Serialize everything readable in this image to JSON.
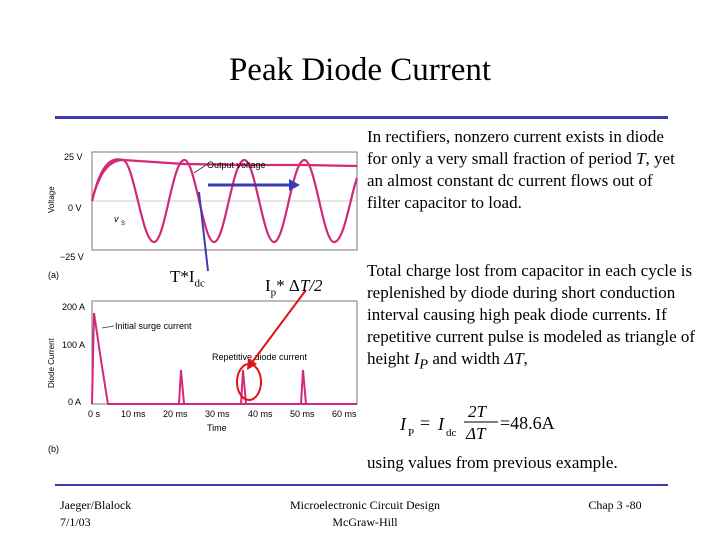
{
  "slide": {
    "title": "Peak Diode Current",
    "paragraph1_pre": "In rectifiers, nonzero current exists in diode for only a very small fraction of period ",
    "paragraph1_var": "T",
    "paragraph1_post": ", yet an almost constant dc current flows out of filter capacitor to load.",
    "paragraph2_pre": "Total charge lost from capacitor in each cycle is replenished by diode during short conduction interval causing high peak diode currents. If repetitive current pulse is modeled as triangle of height ",
    "paragraph2_var1": "I",
    "paragraph2_sub1": "P",
    "paragraph2_mid": " and width ",
    "paragraph2_var2": "ΔT",
    "paragraph2_post": ",",
    "paragraph3": "using values from previous example.",
    "equation": {
      "lhs_var": "I",
      "lhs_sub": "P",
      "eq": "=",
      "rhs_var": "I",
      "rhs_sub": "dc",
      "numerator": "2T",
      "denominator": "ΔT",
      "result": "=48.6A"
    },
    "annotations": {
      "tidc_pre": "T*I",
      "tidc_sub": "dc",
      "ip_pre": "I",
      "ip_sub": "p",
      "ip_mid": "* Δ",
      "ip_var": "T/2"
    }
  },
  "figure": {
    "top_plot": {
      "ylabel": "Voltage",
      "yticks": [
        "25 V",
        "0 V",
        "−25 V"
      ],
      "output_label": "Output voltage",
      "source_label": "v",
      "source_sub": "S",
      "panel": "(a)"
    },
    "bottom_plot": {
      "ylabel": "Diode Current",
      "yticks": [
        "200 A",
        "100 A",
        "0 A"
      ],
      "xticks": [
        "0 s",
        "10 ms",
        "20 ms",
        "30 ms",
        "40 ms",
        "50 ms",
        "60 ms"
      ],
      "xlabel": "Time",
      "surge_label": "Initial surge current",
      "repetitive_label": "Repetitive diode current",
      "panel": "(b)"
    }
  },
  "footer": {
    "author": "Jaeger/Blalock",
    "date": "7/1/03",
    "book_title": "Microelectronic Circuit Design",
    "publisher": "McGraw-Hill",
    "chapter": "Chap 3 -80"
  },
  "colors": {
    "rule": "#3b3bb5",
    "waveform": "#d4287a",
    "annotation_line": "#3b3bb5",
    "highlight": "#e01414"
  }
}
